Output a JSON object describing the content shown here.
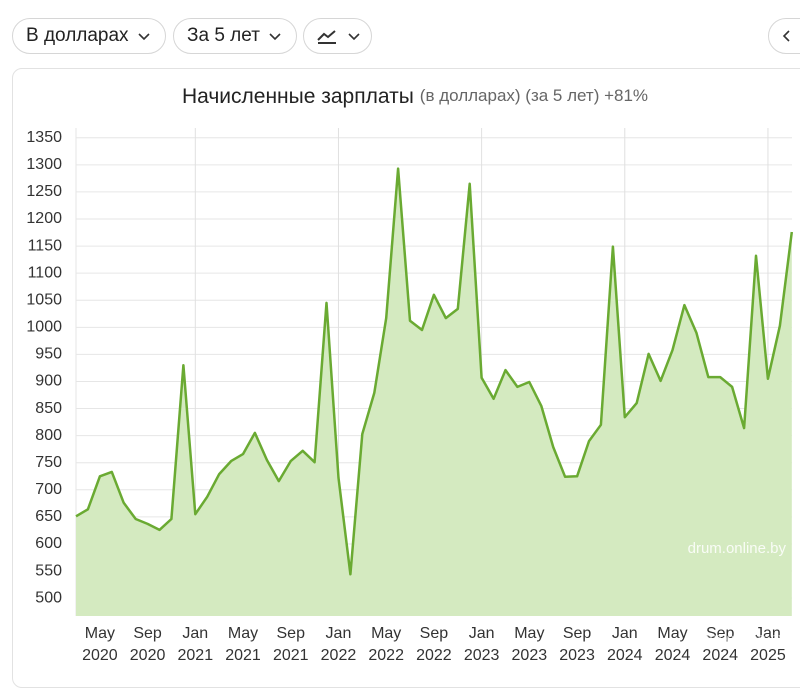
{
  "header": {
    "currency": "В долларах",
    "period": "За 5 лет"
  },
  "chart_data": {
    "type": "area",
    "title": "Начисленные зарплаты",
    "subtitle": "(в долларах) (за 5 лет) +81%",
    "categories": [
      null,
      null,
      "May 2020",
      null,
      null,
      null,
      "Sep 2020",
      null,
      null,
      null,
      "Jan 2021",
      null,
      null,
      null,
      "May 2021",
      null,
      null,
      null,
      "Sep 2021",
      null,
      null,
      null,
      "Jan 2022",
      null,
      null,
      null,
      "May 2022",
      null,
      null,
      null,
      "Sep 2022",
      null,
      null,
      null,
      "Jan 2023",
      null,
      null,
      null,
      "May 2023",
      null,
      null,
      null,
      "Sep 2023",
      null,
      null,
      null,
      "Jan 2024",
      null,
      null,
      null,
      "May 2024",
      null,
      null,
      null,
      "Sep 2024",
      null,
      null,
      null,
      "Jan 2025",
      null,
      null
    ],
    "values": [
      651,
      664,
      725,
      733,
      676,
      646,
      637,
      626,
      646,
      930,
      655,
      687,
      729,
      753,
      766,
      805,
      755,
      716,
      753,
      772,
      751,
      1045,
      722,
      544,
      803,
      879,
      1017,
      1293,
      1012,
      995,
      1060,
      1017,
      1034,
      1265,
      907,
      868,
      921,
      890,
      899,
      855,
      779,
      724,
      725,
      790,
      820,
      1149,
      834,
      860,
      951,
      901,
      958,
      1041,
      990,
      908,
      908,
      890,
      814,
      1132,
      905,
      1003,
      1176
    ],
    "color": "#6aaa32",
    "fill": "#d4eac0",
    "ylim": [
      467,
      1368
    ],
    "yticks": [
      500,
      550,
      600,
      650,
      700,
      750,
      800,
      850,
      900,
      950,
      1000,
      1050,
      1100,
      1150,
      1200,
      1250,
      1300,
      1350
    ],
    "grid": true,
    "watermark": "drum.online.by"
  }
}
